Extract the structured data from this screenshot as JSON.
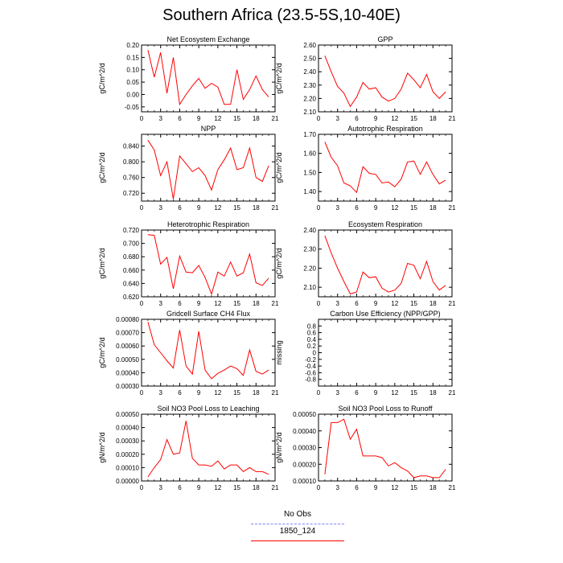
{
  "title": "Southern Africa (23.5-5S,10-40E)",
  "legend": [
    {
      "label": "No Obs",
      "color": "#8080ff",
      "dash": "dashed"
    },
    {
      "label": "1850_124",
      "color": "#ff0000",
      "dash": "solid"
    }
  ],
  "chart_data": [
    {
      "type": "line",
      "title": "Net Ecosystem Exchange",
      "ylabel": "gC/m^2/d",
      "xlim": [
        0,
        21
      ],
      "xticks": [
        0,
        3,
        6,
        9,
        12,
        15,
        18,
        21
      ],
      "ylim": [
        -0.07,
        0.2
      ],
      "yticks": [
        "-0.05",
        "0.00",
        "0.05",
        "0.10",
        "0.15",
        "0.20"
      ],
      "yticks_values": [
        -0.05,
        0.0,
        0.05,
        0.1,
        0.15,
        0.2
      ],
      "x": [
        1,
        2,
        3,
        4,
        5,
        6,
        7,
        8,
        9,
        10,
        11,
        12,
        13,
        14,
        15,
        16,
        17,
        18,
        19,
        20
      ],
      "series": [
        {
          "values": [
            0.18,
            0.07,
            0.17,
            0.005,
            0.15,
            -0.04,
            0.0,
            0.035,
            0.065,
            0.025,
            0.045,
            0.03,
            -0.04,
            -0.04,
            0.1,
            -0.02,
            0.02,
            0.075,
            0.02,
            -0.01
          ],
          "color": "#ff0000"
        }
      ]
    },
    {
      "type": "line",
      "title": "GPP",
      "ylabel": "gC/m^2/d",
      "xlim": [
        0,
        21
      ],
      "xticks": [
        0,
        3,
        6,
        9,
        12,
        15,
        18,
        21
      ],
      "ylim": [
        2.1,
        2.6
      ],
      "yticks": [
        "2.10",
        "2.20",
        "2.30",
        "2.40",
        "2.50",
        "2.60"
      ],
      "yticks_values": [
        2.1,
        2.2,
        2.3,
        2.4,
        2.5,
        2.6
      ],
      "x": [
        1,
        2,
        3,
        4,
        5,
        6,
        7,
        8,
        9,
        10,
        11,
        12,
        13,
        14,
        15,
        16,
        17,
        18,
        19,
        20
      ],
      "series": [
        {
          "values": [
            2.52,
            2.4,
            2.29,
            2.24,
            2.14,
            2.21,
            2.32,
            2.27,
            2.28,
            2.21,
            2.18,
            2.2,
            2.27,
            2.39,
            2.34,
            2.28,
            2.38,
            2.25,
            2.2,
            2.25
          ],
          "color": "#ff0000"
        }
      ]
    },
    {
      "type": "line",
      "title": "NPP",
      "ylabel": "gC/m^2/d",
      "xlim": [
        0,
        21
      ],
      "xticks": [
        0,
        3,
        6,
        9,
        12,
        15,
        18,
        21
      ],
      "ylim": [
        0.7,
        0.87
      ],
      "yticks": [
        "0.720",
        "0.760",
        "0.800",
        "0.840"
      ],
      "yticks_values": [
        0.72,
        0.76,
        0.8,
        0.84
      ],
      "x": [
        1,
        2,
        3,
        4,
        5,
        6,
        7,
        8,
        9,
        10,
        11,
        12,
        13,
        14,
        15,
        16,
        17,
        18,
        19,
        20
      ],
      "series": [
        {
          "values": [
            0.855,
            0.83,
            0.765,
            0.8,
            0.705,
            0.815,
            0.795,
            0.775,
            0.785,
            0.765,
            0.728,
            0.78,
            0.805,
            0.835,
            0.78,
            0.785,
            0.835,
            0.76,
            0.75,
            0.79
          ],
          "color": "#ff0000"
        }
      ]
    },
    {
      "type": "line",
      "title": "Autotrophic Respiration",
      "ylabel": "gC/m^2/d",
      "xlim": [
        0,
        21
      ],
      "xticks": [
        0,
        3,
        6,
        9,
        12,
        15,
        18,
        21
      ],
      "ylim": [
        1.35,
        1.7
      ],
      "yticks": [
        "1.40",
        "1.50",
        "1.60",
        "1.70"
      ],
      "yticks_values": [
        1.4,
        1.5,
        1.6,
        1.7
      ],
      "x": [
        1,
        2,
        3,
        4,
        5,
        6,
        7,
        8,
        9,
        10,
        11,
        12,
        13,
        14,
        15,
        16,
        17,
        18,
        19,
        20
      ],
      "series": [
        {
          "values": [
            1.66,
            1.58,
            1.535,
            1.445,
            1.43,
            1.395,
            1.53,
            1.495,
            1.49,
            1.445,
            1.45,
            1.425,
            1.465,
            1.555,
            1.56,
            1.49,
            1.555,
            1.49,
            1.44,
            1.46
          ],
          "color": "#ff0000"
        }
      ]
    },
    {
      "type": "line",
      "title": "Heterotrophic Respiration",
      "ylabel": "gC/m^2/d",
      "xlim": [
        0,
        21
      ],
      "xticks": [
        0,
        3,
        6,
        9,
        12,
        15,
        18,
        21
      ],
      "ylim": [
        0.62,
        0.72
      ],
      "yticks": [
        "0.620",
        "0.640",
        "0.660",
        "0.680",
        "0.700",
        "0.720"
      ],
      "yticks_values": [
        0.62,
        0.64,
        0.66,
        0.68,
        0.7,
        0.72
      ],
      "x": [
        1,
        2,
        3,
        4,
        5,
        6,
        7,
        8,
        9,
        10,
        11,
        12,
        13,
        14,
        15,
        16,
        17,
        18,
        19,
        20
      ],
      "series": [
        {
          "values": [
            0.713,
            0.712,
            0.669,
            0.679,
            0.632,
            0.681,
            0.657,
            0.656,
            0.667,
            0.649,
            0.624,
            0.657,
            0.651,
            0.672,
            0.651,
            0.656,
            0.684,
            0.641,
            0.637,
            0.648
          ],
          "color": "#ff0000"
        }
      ]
    },
    {
      "type": "line",
      "title": "Ecosystem Respiration",
      "ylabel": "gC/m^2/d",
      "xlim": [
        0,
        21
      ],
      "xticks": [
        0,
        3,
        6,
        9,
        12,
        15,
        18,
        21
      ],
      "ylim": [
        2.05,
        2.4
      ],
      "yticks": [
        "2.10",
        "2.20",
        "2.30",
        "2.40"
      ],
      "yticks_values": [
        2.1,
        2.2,
        2.3,
        2.4
      ],
      "x": [
        1,
        2,
        3,
        4,
        5,
        6,
        7,
        8,
        9,
        10,
        11,
        12,
        13,
        14,
        15,
        16,
        17,
        18,
        19,
        20
      ],
      "series": [
        {
          "values": [
            2.37,
            2.28,
            2.2,
            2.13,
            2.065,
            2.075,
            2.18,
            2.15,
            2.155,
            2.095,
            2.075,
            2.085,
            2.12,
            2.225,
            2.215,
            2.145,
            2.235,
            2.13,
            2.085,
            2.11
          ],
          "color": "#ff0000"
        }
      ]
    },
    {
      "type": "line",
      "title": "Gridcell Surface CH4 Flux",
      "ylabel": "gC/m^2/d",
      "xlim": [
        0,
        21
      ],
      "xticks": [
        0,
        3,
        6,
        9,
        12,
        15,
        18,
        21
      ],
      "ylim": [
        0.0003,
        0.0008
      ],
      "yticks": [
        "0.00030",
        "0.00040",
        "0.00050",
        "0.00060",
        "0.00070",
        "0.00080"
      ],
      "yticks_values": [
        0.0003,
        0.0004,
        0.0005,
        0.0006,
        0.0007,
        0.0008
      ],
      "x": [
        1,
        2,
        3,
        4,
        5,
        6,
        7,
        8,
        9,
        10,
        11,
        12,
        13,
        14,
        15,
        16,
        17,
        18,
        19,
        20
      ],
      "series": [
        {
          "values": [
            0.00078,
            0.00061,
            0.00055,
            0.00049,
            0.000435,
            0.00072,
            0.00045,
            0.00039,
            0.00071,
            0.00042,
            0.000355,
            0.000395,
            0.00042,
            0.00045,
            0.00043,
            0.00038,
            0.00057,
            0.00041,
            0.00039,
            0.00042
          ],
          "color": "#ff0000"
        }
      ]
    },
    {
      "type": "line",
      "title": "Carbon Use Efficiency (NPP/GPP)",
      "ylabel": "missing",
      "xlim": [
        0,
        21
      ],
      "xticks": [
        0,
        3,
        6,
        9,
        12,
        15,
        18,
        21
      ],
      "ylim": [
        -1.0,
        1.0
      ],
      "yticks": [
        "-0.8",
        "-0.6",
        "-0.4",
        "-0.2",
        "0",
        "0.2",
        "0.4",
        "0.6",
        "0.8"
      ],
      "yticks_values": [
        -0.8,
        -0.6,
        -0.4,
        -0.2,
        0,
        0.2,
        0.4,
        0.6,
        0.8
      ],
      "x": [],
      "series": []
    },
    {
      "type": "line",
      "title": "Soil NO3 Pool Loss to Leaching",
      "ylabel": "gN/m^2/d",
      "xlim": [
        0,
        21
      ],
      "xticks": [
        0,
        3,
        6,
        9,
        12,
        15,
        18,
        21
      ],
      "ylim": [
        0.0,
        0.0005
      ],
      "yticks": [
        "0.00000",
        "0.00010",
        "0.00020",
        "0.00030",
        "0.00040",
        "0.00050"
      ],
      "yticks_values": [
        0.0,
        0.0001,
        0.0002,
        0.0003,
        0.0004,
        0.0005
      ],
      "x": [
        1,
        2,
        3,
        4,
        5,
        6,
        7,
        8,
        9,
        10,
        11,
        12,
        13,
        14,
        15,
        16,
        17,
        18,
        19,
        20
      ],
      "series": [
        {
          "values": [
            3e-05,
            0.0001,
            0.00016,
            0.00031,
            0.0002,
            0.00021,
            0.00045,
            0.00017,
            0.00012,
            0.00012,
            0.00011,
            0.00015,
            9e-05,
            0.00012,
            0.00012,
            7e-05,
            0.0001,
            7e-05,
            7e-05,
            5e-05
          ],
          "color": "#ff0000"
        }
      ]
    },
    {
      "type": "line",
      "title": "Soil NO3 Pool Loss to Runoff",
      "ylabel": "gN/m^2/d",
      "xlim": [
        0,
        21
      ],
      "xticks": [
        0,
        3,
        6,
        9,
        12,
        15,
        18,
        21
      ],
      "ylim": [
        0.0001,
        0.0005
      ],
      "yticks": [
        "0.00010",
        "0.00020",
        "0.00030",
        "0.00040",
        "0.00050"
      ],
      "yticks_values": [
        0.0001,
        0.0002,
        0.0003,
        0.0004,
        0.0005
      ],
      "x": [
        1,
        2,
        3,
        4,
        5,
        6,
        7,
        8,
        9,
        10,
        11,
        12,
        13,
        14,
        15,
        16,
        17,
        18,
        19,
        20
      ],
      "series": [
        {
          "values": [
            0.00014,
            0.00045,
            0.00045,
            0.00047,
            0.00035,
            0.00041,
            0.00025,
            0.00025,
            0.00025,
            0.00024,
            0.00019,
            0.00021,
            0.00018,
            0.00016,
            0.00012,
            0.00013,
            0.00013,
            0.00012,
            0.00012,
            0.00017
          ],
          "color": "#ff0000"
        }
      ]
    }
  ]
}
